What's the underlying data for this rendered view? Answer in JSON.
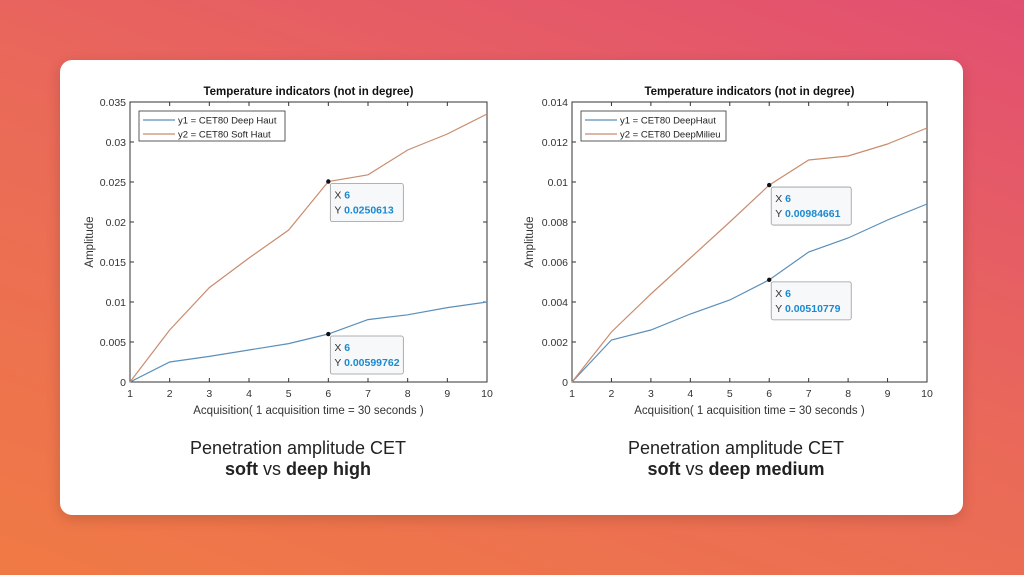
{
  "captions": [
    {
      "line1": "Penetration amplitude CET",
      "bold1": "soft",
      "vs": "vs",
      "bold2": "deep high"
    },
    {
      "line1": "Penetration amplitude CET",
      "bold1": "soft",
      "vs": "vs",
      "bold2": "deep medium"
    }
  ],
  "chart_data": [
    {
      "type": "line",
      "title": "Temperature indicators (not in degree)",
      "xlabel": "Acquisition( 1 acquisition time = 30 seconds )",
      "ylabel": "Amplitude",
      "x": [
        1,
        2,
        3,
        4,
        5,
        6,
        7,
        8,
        9,
        10
      ],
      "xlim": [
        1,
        10
      ],
      "ylim": [
        0,
        0.035
      ],
      "yticks": [
        "0",
        "0.005",
        "0.01",
        "0.015",
        "0.02",
        "0.025",
        "0.03",
        "0.035"
      ],
      "xticks": [
        "1",
        "2",
        "3",
        "4",
        "5",
        "6",
        "7",
        "8",
        "9",
        "10"
      ],
      "legend": "top-left",
      "grid": false,
      "series": [
        {
          "name": "y1 = CET80 Deep Haut",
          "color": "#5b8fb9",
          "values": [
            0,
            0.0025,
            0.0032,
            0.004,
            0.0048,
            0.00599762,
            0.0078,
            0.0084,
            0.0093,
            0.01
          ]
        },
        {
          "name": "y2 = CET80 Soft Haut",
          "color": "#c98c6e",
          "values": [
            0,
            0.0065,
            0.0118,
            0.0155,
            0.019,
            0.0250613,
            0.0259,
            0.029,
            0.031,
            0.0335
          ]
        }
      ],
      "datatips": [
        {
          "series": 1,
          "x": "6",
          "y": "0.0250613"
        },
        {
          "series": 0,
          "x": "6",
          "y": "0.00599762"
        }
      ]
    },
    {
      "type": "line",
      "title": "Temperature indicators (not in degree)",
      "xlabel": "Acquisition( 1 acquisition time = 30 seconds )",
      "ylabel": "Amplitude",
      "x": [
        1,
        2,
        3,
        4,
        5,
        6,
        7,
        8,
        9,
        10
      ],
      "xlim": [
        1,
        10
      ],
      "ylim": [
        0,
        0.014
      ],
      "yticks": [
        "0",
        "0.002",
        "0.004",
        "0.006",
        "0.008",
        "0.01",
        "0.012",
        "0.014"
      ],
      "xticks": [
        "1",
        "2",
        "3",
        "4",
        "5",
        "6",
        "7",
        "8",
        "9",
        "10"
      ],
      "legend": "top-left",
      "grid": false,
      "series": [
        {
          "name": "y1 = CET80 DeepHaut",
          "color": "#5b8fb9",
          "values": [
            0,
            0.0021,
            0.0026,
            0.0034,
            0.0041,
            0.00510779,
            0.0065,
            0.0072,
            0.0081,
            0.0089
          ]
        },
        {
          "name": "y2 = CET80 DeepMilieu",
          "color": "#c98c6e",
          "values": [
            0,
            0.0025,
            0.0044,
            0.0062,
            0.008,
            0.00984661,
            0.0111,
            0.0113,
            0.0119,
            0.0127
          ]
        }
      ],
      "datatips": [
        {
          "series": 1,
          "x": "6",
          "y": "0.00984661"
        },
        {
          "series": 0,
          "x": "6",
          "y": "0.00510779"
        }
      ]
    }
  ]
}
